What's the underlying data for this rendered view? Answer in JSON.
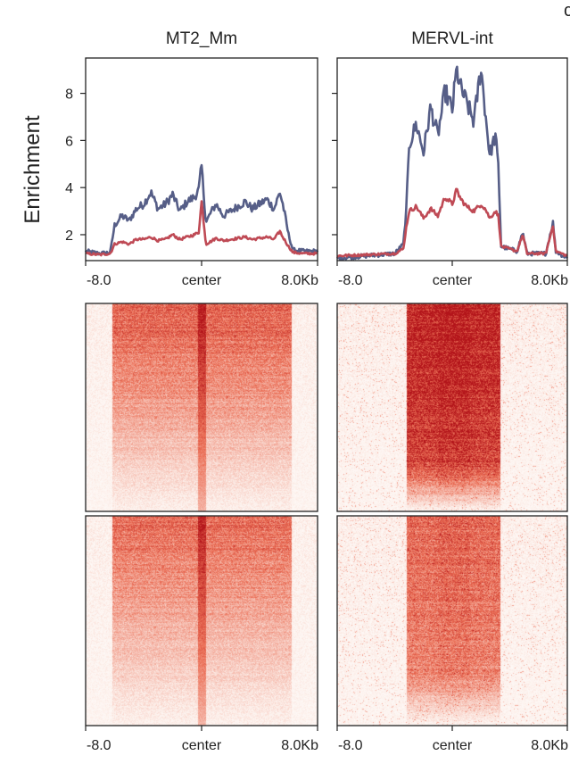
{
  "figure": {
    "corner_letter": "c",
    "ylabel": "Enrichment"
  },
  "colors": {
    "series_1": "#565e87",
    "series_2": "#bf4a55",
    "heat_low": "#fdf1ec",
    "heat_high": "#b3141a"
  },
  "chart_data": [
    {
      "type": "line",
      "title": "MT2_Mm",
      "ylabel": "Enrichment",
      "x_tick_labels": [
        "-8.0",
        "center",
        "8.0Kb"
      ],
      "x_ticks": [
        -8,
        0,
        8
      ],
      "xlim": [
        -8,
        8
      ],
      "ylim": [
        0.9,
        9.5
      ],
      "y_ticks": [
        2,
        4,
        6,
        8
      ],
      "grid": false,
      "series": [
        {
          "x": [
            -8.0,
            -7.0,
            -6.3,
            -6.0,
            -5.5,
            -5.0,
            -4.5,
            -4.0,
            -3.5,
            -3.0,
            -2.5,
            -2.0,
            -1.5,
            -1.0,
            -0.5,
            -0.2,
            0.0,
            0.3,
            0.6,
            1.0,
            1.5,
            2.0,
            2.5,
            3.0,
            3.5,
            4.0,
            4.5,
            5.0,
            5.4,
            5.6,
            6.0,
            6.3,
            7.0,
            8.0
          ],
          "values": [
            1.3,
            1.2,
            1.25,
            2.4,
            2.8,
            2.6,
            3.1,
            3.3,
            3.8,
            3.1,
            3.3,
            3.7,
            3.0,
            3.4,
            3.6,
            3.9,
            4.9,
            2.5,
            2.9,
            3.3,
            2.8,
            3.0,
            3.2,
            3.4,
            3.1,
            3.3,
            3.5,
            3.1,
            3.8,
            3.3,
            2.0,
            1.35,
            1.3,
            1.3
          ]
        },
        {
          "x": [
            -8.0,
            -7.0,
            -6.3,
            -6.0,
            -5.5,
            -5.0,
            -4.5,
            -4.0,
            -3.5,
            -3.0,
            -2.5,
            -2.0,
            -1.5,
            -1.0,
            -0.5,
            -0.2,
            0.0,
            0.3,
            0.6,
            1.0,
            1.5,
            2.0,
            2.5,
            3.0,
            3.5,
            4.0,
            4.5,
            5.0,
            5.4,
            5.6,
            6.0,
            6.3,
            7.0,
            8.0
          ],
          "values": [
            1.2,
            1.15,
            1.2,
            1.6,
            1.7,
            1.6,
            1.8,
            1.8,
            1.9,
            1.75,
            1.8,
            2.0,
            1.8,
            1.9,
            2.0,
            2.1,
            3.4,
            1.6,
            1.7,
            1.85,
            1.75,
            1.8,
            1.85,
            1.9,
            1.8,
            1.85,
            1.9,
            1.8,
            2.15,
            1.9,
            1.5,
            1.25,
            1.2,
            1.2
          ]
        }
      ]
    },
    {
      "type": "line",
      "title": "MERVL-int",
      "x_tick_labels": [
        "-8.0",
        "center",
        "8.0Kb"
      ],
      "x_ticks": [
        -8,
        0,
        8
      ],
      "xlim": [
        -8,
        8
      ],
      "ylim": [
        0.9,
        9.5
      ],
      "y_ticks": [
        2,
        4,
        6,
        8
      ],
      "grid": false,
      "series": [
        {
          "x": [
            -8.0,
            -6.0,
            -4.0,
            -3.4,
            -3.2,
            -3.0,
            -2.5,
            -2.0,
            -1.5,
            -1.0,
            -0.5,
            0.0,
            0.3,
            0.6,
            1.0,
            1.5,
            2.0,
            2.3,
            2.6,
            3.0,
            3.2,
            3.4,
            4.5,
            4.9,
            5.2,
            6.5,
            6.8,
            7.0,
            7.2,
            8.0
          ],
          "values": [
            1.0,
            1.1,
            1.2,
            1.6,
            3.0,
            5.8,
            6.7,
            5.5,
            7.4,
            6.2,
            8.1,
            7.3,
            9.0,
            8.2,
            7.6,
            6.8,
            9.1,
            7.2,
            5.4,
            6.2,
            4.9,
            1.5,
            1.3,
            2.1,
            1.2,
            1.2,
            2.0,
            2.5,
            1.3,
            1.0
          ]
        },
        {
          "x": [
            -8.0,
            -6.0,
            -4.0,
            -3.4,
            -3.2,
            -3.0,
            -2.5,
            -2.0,
            -1.5,
            -1.0,
            -0.5,
            0.0,
            0.3,
            0.6,
            1.0,
            1.5,
            2.0,
            2.3,
            2.6,
            3.0,
            3.2,
            3.4,
            4.5,
            4.9,
            5.2,
            6.5,
            6.8,
            7.0,
            7.2,
            8.0
          ],
          "values": [
            1.1,
            1.15,
            1.2,
            1.4,
            2.3,
            3.0,
            3.2,
            2.7,
            3.1,
            2.8,
            3.6,
            3.3,
            3.9,
            3.5,
            3.2,
            3.0,
            3.3,
            3.1,
            2.7,
            3.0,
            2.8,
            1.5,
            1.3,
            2.0,
            1.2,
            1.2,
            1.9,
            2.4,
            1.3,
            1.1
          ]
        }
      ]
    },
    {
      "type": "heatmap",
      "title": "",
      "x_tick_labels": [],
      "xlim": [
        -8,
        8
      ],
      "signal_region": [
        -6.2,
        6.2
      ],
      "center_stripe": true
    },
    {
      "type": "heatmap",
      "title": "",
      "x_tick_labels": [],
      "xlim": [
        -8,
        8
      ],
      "signal_region": [
        -3.2,
        3.3
      ],
      "center_stripe": false
    },
    {
      "type": "heatmap",
      "title": "",
      "x_tick_labels": [
        "-8.0",
        "center",
        "8.0Kb"
      ],
      "xlim": [
        -8,
        8
      ],
      "signal_region": [
        -6.2,
        6.2
      ],
      "center_stripe": true
    },
    {
      "type": "heatmap",
      "title": "",
      "x_tick_labels": [
        "-8.0",
        "center",
        "8.0Kb"
      ],
      "xlim": [
        -8,
        8
      ],
      "signal_region": [
        -3.2,
        3.3
      ],
      "center_stripe": false
    }
  ]
}
